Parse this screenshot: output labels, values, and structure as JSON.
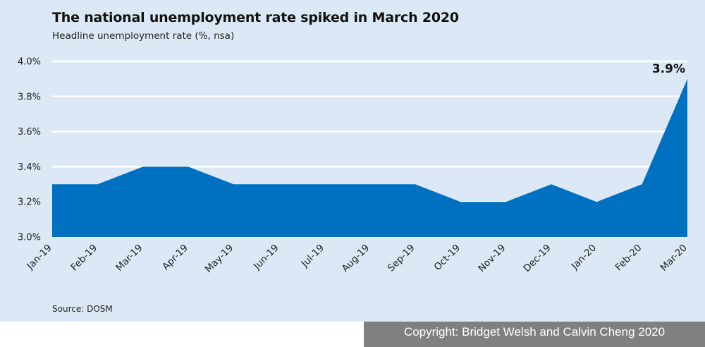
{
  "chart_data": {
    "type": "area",
    "title": "The national unemployment rate spiked in March 2020",
    "subtitle": "Headline unemployment rate (%, nsa)",
    "categories": [
      "Jan-19",
      "Feb-19",
      "Mar-19",
      "Apr-19",
      "May-19",
      "Jun-19",
      "Jul-19",
      "Aug-19",
      "Sep-19",
      "Oct-19",
      "Nov-19",
      "Dec-19",
      "Jan-20",
      "Feb-20",
      "Mar-20"
    ],
    "series": [
      {
        "values": [
          3.3,
          3.3,
          3.4,
          3.4,
          3.3,
          3.3,
          3.3,
          3.3,
          3.3,
          3.2,
          3.2,
          3.3,
          3.2,
          3.3,
          3.9
        ]
      }
    ],
    "ylim": [
      3.0,
      4.0
    ],
    "yticks": [
      "3.0%",
      "3.2%",
      "3.4%",
      "3.6%",
      "3.8%",
      "4.0%"
    ],
    "ytick_values": [
      3.0,
      3.2,
      3.4,
      3.6,
      3.8,
      4.0
    ],
    "annotation": {
      "category": "Mar-20",
      "text": "3.9%"
    },
    "grid": true,
    "fill_color": "#0070c0",
    "background_color": "#dce8f5",
    "source": "Source: DOSM"
  },
  "footer": {
    "copyright": "Copyright: Bridget Welsh and Calvin Cheng 2020"
  }
}
